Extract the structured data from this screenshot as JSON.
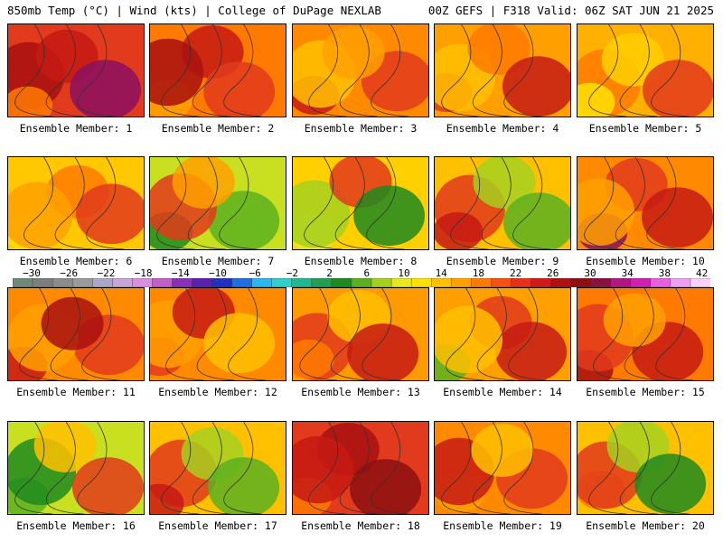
{
  "header": {
    "left": "850mb Temp (°C) | Wind (kts) | College of DuPage NEXLAB",
    "right": "00Z GEFS | F318 Valid: 06Z SAT JUN 21 2025"
  },
  "colorbar": {
    "tick_labels": [
      "−30",
      "−26",
      "−22",
      "−18",
      "−14",
      "−10",
      "−6",
      "−2",
      "2",
      "6",
      "10",
      "14",
      "18",
      "22",
      "26",
      "30",
      "34",
      "38",
      "42"
    ],
    "colors": [
      "#6e8a77",
      "#7d7d7d",
      "#8c8c8c",
      "#9a9a9a",
      "#aaa7c8",
      "#c9a4d8",
      "#d88fe0",
      "#c060c8",
      "#8a2fb8",
      "#5a20b0",
      "#2030c0",
      "#1f6fe0",
      "#2ab8f0",
      "#30d0c8",
      "#20b890",
      "#20a050",
      "#1e8a20",
      "#5cb020",
      "#a6d020",
      "#e8e820",
      "#ffe000",
      "#ffc000",
      "#ffa000",
      "#ff7a00",
      "#f85010",
      "#e83018",
      "#d01818",
      "#b01010",
      "#8c1010",
      "#8a1040",
      "#b01880",
      "#d020b0",
      "#e860e0",
      "#f0a0f0",
      "#f8d0f8"
    ]
  },
  "panels": [
    {
      "label": "Ensemble Member: 1",
      "base": "#e23a1c",
      "blobs": [
        "#a81010",
        "#c61a14",
        "#8c1060",
        "#ff7a00"
      ]
    },
    {
      "label": "Ensemble Member: 2",
      "base": "#ff7a00",
      "blobs": [
        "#c61a14",
        "#e23a1c",
        "#ffa000",
        "#a81010"
      ]
    },
    {
      "label": "Ensemble Member: 3",
      "base": "#ff8a00",
      "blobs": [
        "#e23a1c",
        "#c61a14",
        "#ffc000",
        "#ffa000"
      ]
    },
    {
      "label": "Ensemble Member: 4",
      "base": "#ffa000",
      "blobs": [
        "#e23a1c",
        "#ffc000",
        "#ff7a00",
        "#c61a14"
      ]
    },
    {
      "label": "Ensemble Member: 5",
      "base": "#ffb000",
      "blobs": [
        "#ff7a00",
        "#ffd000",
        "#e23a1c",
        "#ffe000"
      ]
    },
    {
      "label": "Ensemble Member: 6",
      "base": "#ffc800",
      "blobs": [
        "#ff7a00",
        "#e23a1c",
        "#ffe000",
        "#ffa000"
      ]
    },
    {
      "label": "Ensemble Member: 7",
      "base": "#c8e020",
      "blobs": [
        "#5cb020",
        "#1e8a20",
        "#e23a1c",
        "#ffa000"
      ]
    },
    {
      "label": "Ensemble Member: 8",
      "base": "#ffd000",
      "blobs": [
        "#e8e820",
        "#a6d020",
        "#e23a1c",
        "#1e8a20"
      ]
    },
    {
      "label": "Ensemble Member: 9",
      "base": "#ffc000",
      "blobs": [
        "#e23a1c",
        "#a6d020",
        "#5cb020",
        "#c61a14"
      ]
    },
    {
      "label": "Ensemble Member: 10",
      "base": "#ff8a00",
      "blobs": [
        "#e23a1c",
        "#c61a14",
        "#8c1060",
        "#ffa000"
      ]
    },
    {
      "label": "Ensemble Member: 11",
      "base": "#ff8a00",
      "blobs": [
        "#e23a1c",
        "#c61a14",
        "#ffa000",
        "#a81010"
      ]
    },
    {
      "label": "Ensemble Member: 12",
      "base": "#ff8a00",
      "blobs": [
        "#e23a1c",
        "#ffa000",
        "#c61a14",
        "#ffc000"
      ]
    },
    {
      "label": "Ensemble Member: 13",
      "base": "#ff9a00",
      "blobs": [
        "#e23a1c",
        "#ffc000",
        "#c61a14",
        "#ff7a00"
      ]
    },
    {
      "label": "Ensemble Member: 14",
      "base": "#ffa000",
      "blobs": [
        "#e23a1c",
        "#c61a14",
        "#5cb020",
        "#ffc000"
      ]
    },
    {
      "label": "Ensemble Member: 15",
      "base": "#ff7a00",
      "blobs": [
        "#c61a14",
        "#a81010",
        "#e23a1c",
        "#ffa000"
      ]
    },
    {
      "label": "Ensemble Member: 16",
      "base": "#c8e020",
      "blobs": [
        "#5cb020",
        "#1e8a20",
        "#ffc000",
        "#e23a1c"
      ]
    },
    {
      "label": "Ensemble Member: 17",
      "base": "#ffc000",
      "blobs": [
        "#e23a1c",
        "#a6d020",
        "#5cb020",
        "#c61a14"
      ]
    },
    {
      "label": "Ensemble Member: 18",
      "base": "#e23a1c",
      "blobs": [
        "#a81010",
        "#8c1010",
        "#ff7a00",
        "#c61a14"
      ]
    },
    {
      "label": "Ensemble Member: 19",
      "base": "#ff8a00",
      "blobs": [
        "#e23a1c",
        "#ffa000",
        "#c61a14",
        "#ffc000"
      ]
    },
    {
      "label": "Ensemble Member: 20",
      "base": "#ffc000",
      "blobs": [
        "#ff7a00",
        "#e23a1c",
        "#a6d020",
        "#1e8a20"
      ]
    }
  ]
}
